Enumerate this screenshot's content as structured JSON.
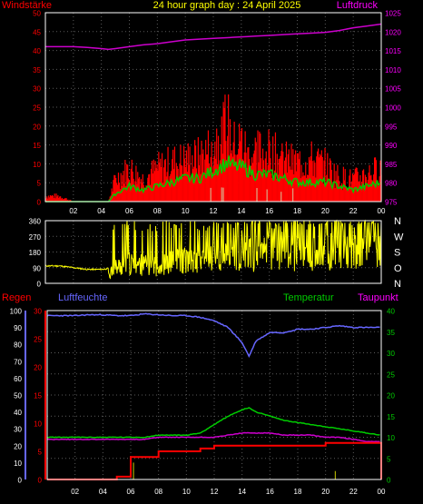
{
  "header": {
    "title": "24 hour graph day : 24 April 2025",
    "left_label": "Windstärke",
    "right_label": "Luftdruck"
  },
  "colors": {
    "background": "#000000",
    "plot_border": "#ffffff",
    "grid": "#5a5a5a",
    "wind": "#ff0000",
    "wind_avg": "#00cc00",
    "wind_light": "#c8ffc8",
    "pressure": "#cc00cc",
    "direction": "#ffff00",
    "humidity": "#6666ff",
    "temperature": "#00cc00",
    "dewpoint": "#cc00cc",
    "rain": "#ff0000",
    "rain_rate": "#aaaa00",
    "left_red": "#ff0000",
    "right_magenta": "#ff00ff",
    "right_green": "#00cc00"
  },
  "x_ticks": [
    "02",
    "04",
    "06",
    "08",
    "10",
    "12",
    "14",
    "16",
    "18",
    "20",
    "22",
    "00"
  ],
  "top_chart": {
    "left_ticks": [
      "0",
      "5",
      "10",
      "15",
      "20",
      "25",
      "30",
      "35",
      "40",
      "45",
      "50"
    ],
    "right_ticks": [
      "975",
      "980",
      "985",
      "990",
      "995",
      "1000",
      "1005",
      "1010",
      "1015",
      "1020",
      "1025"
    ]
  },
  "direction_chart": {
    "left_ticks": [
      "0",
      "90",
      "180",
      "270",
      "360"
    ],
    "right_labels": [
      "N",
      "W",
      "S",
      "O",
      "N"
    ]
  },
  "bottom_chart": {
    "labels": {
      "rain": "Regen",
      "humidity": "Luftfeuchte",
      "temperature": "Temperatur",
      "dewpoint": "Taupunkt"
    },
    "humidity_ticks": [
      "0",
      "10",
      "20",
      "30",
      "40",
      "50",
      "60",
      "70",
      "80",
      "90",
      "100"
    ],
    "rain_ticks": [
      "0",
      "5",
      "10",
      "15",
      "20",
      "25",
      "30"
    ],
    "temp_ticks": [
      "0",
      "5",
      "10",
      "15",
      "20",
      "25",
      "30",
      "35",
      "40"
    ]
  },
  "chart_data": [
    {
      "type": "line",
      "xlabel": "",
      "ylabel_left": "Windstärke",
      "ylabel_right": "Luftdruck",
      "x_hours": [
        0,
        1,
        2,
        3,
        4,
        4.5,
        5,
        6,
        7,
        8,
        9,
        10,
        11,
        12,
        12.5,
        13,
        13.5,
        14,
        14.5,
        15,
        16,
        17,
        18,
        19,
        20,
        21,
        22,
        23,
        24
      ],
      "ylim_left": [
        0,
        50
      ],
      "ylim_right": [
        975,
        1025
      ],
      "series": [
        {
          "key": "pressure",
          "name": "Luftdruck",
          "axis": "right",
          "values": [
            1016,
            1016,
            1016,
            1015.8,
            1015.5,
            1015.3,
            1015.5,
            1016,
            1016.5,
            1016.8,
            1017.3,
            1017.8,
            1018,
            1018.2,
            1018.3,
            1018.4,
            1018.5,
            1018.6,
            1018.7,
            1018.8,
            1019,
            1019.2,
            1019.4,
            1019.6,
            1019.8,
            1020.3,
            1021,
            1021.5,
            1022
          ]
        },
        {
          "key": "wind_max",
          "name": "Windstärke",
          "axis": "left",
          "values": [
            2,
            2,
            0,
            0,
            0,
            0,
            8,
            12,
            8,
            12,
            14,
            15,
            16,
            20,
            26,
            28,
            20,
            22,
            16,
            18,
            18,
            15,
            14,
            15,
            13,
            9,
            8,
            10,
            12
          ]
        },
        {
          "key": "wind_avg",
          "name": "",
          "axis": "left",
          "values": [
            0,
            0,
            0,
            0,
            0,
            0,
            2,
            4,
            3,
            4,
            5,
            6,
            6,
            8,
            9,
            10,
            9,
            9,
            8,
            7,
            7,
            6,
            5,
            5,
            5,
            4,
            3,
            4,
            5
          ]
        }
      ]
    },
    {
      "type": "scatter",
      "ylabel_left": "",
      "ylim": [
        0,
        360
      ],
      "x_hours": [
        0,
        1,
        2,
        3,
        4,
        4.5,
        5,
        6,
        7,
        8,
        9,
        10,
        11,
        12,
        13,
        14,
        15,
        16,
        17,
        18,
        19,
        20,
        21,
        22,
        23,
        24
      ],
      "series": [
        {
          "key": "direction",
          "name": "",
          "values": [
            100,
            100,
            90,
            80,
            80,
            85,
            120,
            150,
            140,
            130,
            160,
            180,
            170,
            200,
            220,
            230,
            210,
            240,
            250,
            220,
            240,
            230,
            260,
            250,
            240,
            280
          ]
        }
      ]
    },
    {
      "type": "line",
      "x_hours": [
        0,
        1,
        2,
        3,
        4,
        5,
        6,
        7,
        8,
        9,
        10,
        11,
        12,
        13,
        14,
        14.5,
        15,
        16,
        17,
        18,
        19,
        20,
        21,
        22,
        23,
        24
      ],
      "ylim_humidity": [
        0,
        100
      ],
      "ylim_rain": [
        0,
        30
      ],
      "ylim_temp": [
        0,
        40
      ],
      "series": [
        {
          "key": "humidity",
          "name": "Luftfeuchte",
          "axis": "humidity",
          "values": [
            97,
            97,
            97,
            97.5,
            97.5,
            97,
            97,
            98,
            97.5,
            97,
            97,
            96,
            94,
            90,
            81,
            73,
            82,
            87,
            87,
            89,
            89,
            90,
            91,
            90,
            90,
            90
          ]
        },
        {
          "key": "temperature",
          "name": "Temperatur",
          "axis": "temp",
          "values": [
            10,
            10,
            10,
            10,
            10,
            10,
            10,
            10,
            10.5,
            10.5,
            10.5,
            11,
            13,
            15,
            16.5,
            17,
            16,
            15,
            14,
            13.5,
            13,
            12.5,
            12,
            11.5,
            11,
            10.5
          ]
        },
        {
          "key": "dewpoint",
          "name": "Taupunkt",
          "axis": "temp",
          "values": [
            9.5,
            9.5,
            9.5,
            9.5,
            9.5,
            9.5,
            9.5,
            9.5,
            10,
            10,
            10,
            10,
            10,
            10.5,
            11,
            11,
            11,
            11,
            10.5,
            10.5,
            10.5,
            10,
            10,
            9.5,
            9,
            9
          ]
        },
        {
          "key": "rain",
          "name": "Regen",
          "axis": "rain",
          "values": [
            0,
            0,
            0,
            0,
            0,
            0.5,
            4,
            4,
            5,
            5,
            5,
            5.5,
            6,
            6,
            6,
            6,
            6,
            6,
            6,
            6,
            6,
            6.5,
            6.5,
            6.5,
            6.5,
            6.5
          ]
        }
      ]
    }
  ]
}
